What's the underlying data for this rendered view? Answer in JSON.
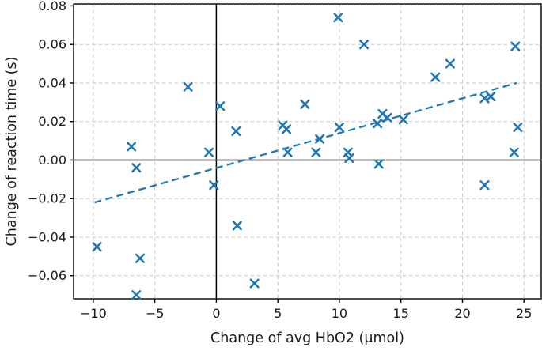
{
  "chart_data": {
    "type": "scatter",
    "title": "",
    "xlabel": "Change of avg HbO2 (μmol)",
    "ylabel": "Change of reaction time (s)",
    "xlim": [
      -11.6,
      26.4
    ],
    "ylim": [
      -0.072,
      0.081
    ],
    "x_ticks": [
      -10,
      -5,
      0,
      5,
      10,
      15,
      20,
      25
    ],
    "y_ticks": [
      0.08,
      0.06,
      0.04,
      0.02,
      0.0,
      -0.02,
      -0.04,
      -0.06
    ],
    "grid": true,
    "zero_lines": true,
    "legend": "none",
    "marker_style": "x",
    "points": [
      {
        "x": -9.7,
        "y": -0.045
      },
      {
        "x": -6.9,
        "y": 0.007
      },
      {
        "x": -6.5,
        "y": -0.004
      },
      {
        "x": -6.2,
        "y": -0.051
      },
      {
        "x": -6.5,
        "y": -0.07
      },
      {
        "x": -2.3,
        "y": 0.038
      },
      {
        "x": -0.6,
        "y": 0.004
      },
      {
        "x": -0.2,
        "y": -0.013
      },
      {
        "x": 0.3,
        "y": 0.028
      },
      {
        "x": 1.6,
        "y": 0.015
      },
      {
        "x": 1.7,
        "y": -0.034
      },
      {
        "x": 3.1,
        "y": -0.064
      },
      {
        "x": 5.4,
        "y": 0.018
      },
      {
        "x": 5.7,
        "y": 0.016
      },
      {
        "x": 5.8,
        "y": 0.004
      },
      {
        "x": 7.2,
        "y": 0.029
      },
      {
        "x": 8.4,
        "y": 0.011
      },
      {
        "x": 8.1,
        "y": 0.004
      },
      {
        "x": 9.9,
        "y": 0.074
      },
      {
        "x": 10.0,
        "y": 0.017
      },
      {
        "x": 10.7,
        "y": 0.004
      },
      {
        "x": 10.8,
        "y": 0.001
      },
      {
        "x": 12.0,
        "y": 0.06
      },
      {
        "x": 13.1,
        "y": 0.019
      },
      {
        "x": 13.5,
        "y": 0.024
      },
      {
        "x": 13.9,
        "y": 0.022
      },
      {
        "x": 13.2,
        "y": -0.002
      },
      {
        "x": 15.2,
        "y": 0.021
      },
      {
        "x": 17.8,
        "y": 0.043
      },
      {
        "x": 19.0,
        "y": 0.05
      },
      {
        "x": 21.8,
        "y": 0.032
      },
      {
        "x": 22.3,
        "y": 0.033
      },
      {
        "x": 21.8,
        "y": -0.013
      },
      {
        "x": 24.3,
        "y": 0.059
      },
      {
        "x": 24.5,
        "y": 0.017
      },
      {
        "x": 24.2,
        "y": 0.004
      }
    ],
    "trendline": {
      "style": "dashed",
      "x1": -9.9,
      "y1": -0.022,
      "x2": 24.4,
      "y2": 0.04
    },
    "colors": {
      "marker": "#1f77b4",
      "trend": "#1f77b4",
      "grid": "#c3c3c3",
      "axis": "#000000",
      "background": "#ffffff"
    }
  }
}
